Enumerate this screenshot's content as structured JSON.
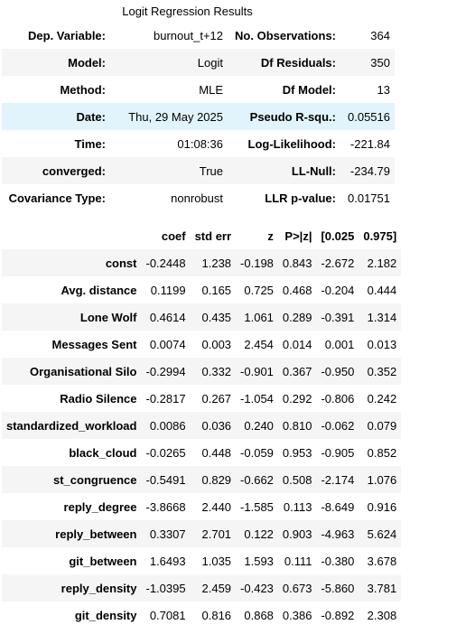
{
  "caption": "Logit Regression Results",
  "summary_rows": [
    [
      "Dep. Variable:",
      "burnout_t+12",
      "No. Observations:",
      "364"
    ],
    [
      "Model:",
      "Logit",
      "Df Residuals:",
      "350"
    ],
    [
      "Method:",
      "MLE",
      "Df Model:",
      "13"
    ],
    [
      "Date:",
      "Thu, 29 May 2025",
      "Pseudo R-squ.:",
      "0.05516"
    ],
    [
      "Time:",
      "01:08:36",
      "Log-Likelihood:",
      "-221.84"
    ],
    [
      "converged:",
      "True",
      "LL-Null:",
      "-234.79"
    ],
    [
      "Covariance Type:",
      "nonrobust",
      "LLR p-value:",
      "0.01751"
    ]
  ],
  "coef_headers": [
    "",
    "coef",
    "std err",
    "z",
    "P>|z|",
    "[0.025",
    "0.975]"
  ],
  "coef_rows": [
    [
      "const",
      "-0.2448",
      "1.238",
      "-0.198",
      "0.843",
      "-2.672",
      "2.182"
    ],
    [
      "Avg. distance",
      "0.1199",
      "0.165",
      "0.725",
      "0.468",
      "-0.204",
      "0.444"
    ],
    [
      "Lone Wolf",
      "0.4614",
      "0.435",
      "1.061",
      "0.289",
      "-0.391",
      "1.314"
    ],
    [
      "Messages Sent",
      "0.0074",
      "0.003",
      "2.454",
      "0.014",
      "0.001",
      "0.013"
    ],
    [
      "Organisational Silo",
      "-0.2994",
      "0.332",
      "-0.901",
      "0.367",
      "-0.950",
      "0.352"
    ],
    [
      "Radio Silence",
      "-0.2817",
      "0.267",
      "-1.054",
      "0.292",
      "-0.806",
      "0.242"
    ],
    [
      "standardized_workload",
      "0.0086",
      "0.036",
      "0.240",
      "0.810",
      "-0.062",
      "0.079"
    ],
    [
      "black_cloud",
      "-0.0265",
      "0.448",
      "-0.059",
      "0.953",
      "-0.905",
      "0.852"
    ],
    [
      "st_congruence",
      "-0.5491",
      "0.829",
      "-0.662",
      "0.508",
      "-2.174",
      "1.076"
    ],
    [
      "reply_degree",
      "-3.8668",
      "2.440",
      "-1.585",
      "0.113",
      "-8.649",
      "0.916"
    ],
    [
      "reply_between",
      "0.3307",
      "2.701",
      "0.122",
      "0.903",
      "-4.963",
      "5.624"
    ],
    [
      "git_between",
      "1.6493",
      "1.035",
      "1.593",
      "0.111",
      "-0.380",
      "3.678"
    ],
    [
      "reply_density",
      "-1.0395",
      "2.459",
      "-0.423",
      "0.673",
      "-5.860",
      "3.781"
    ],
    [
      "git_density",
      "0.7081",
      "0.816",
      "0.868",
      "0.386",
      "-0.892",
      "2.308"
    ]
  ]
}
